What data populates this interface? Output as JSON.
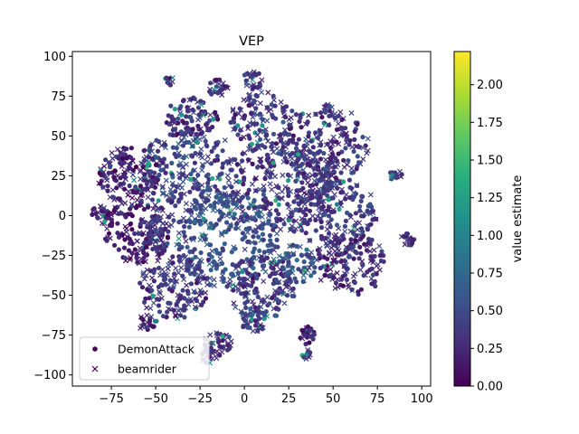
{
  "chart_data": {
    "type": "scatter",
    "title": "VEP",
    "xlabel": "",
    "ylabel": "",
    "xlim": [
      -97,
      105
    ],
    "ylim": [
      -107,
      103
    ],
    "x_ticks": [
      -75,
      -50,
      -25,
      0,
      25,
      50,
      75,
      100
    ],
    "y_ticks": [
      -100,
      -75,
      -50,
      -25,
      0,
      25,
      50,
      75,
      100
    ],
    "grid": false,
    "legend_position": "lower-left",
    "series": [
      {
        "name": "DemonAttack",
        "marker": "circle"
      },
      {
        "name": "beamrider",
        "marker": "x"
      }
    ],
    "colorbar": {
      "label": "value estimate",
      "colormap": "viridis",
      "range": [
        0.0,
        2.22
      ],
      "ticks": [
        0.0,
        0.25,
        0.5,
        0.75,
        1.0,
        1.25,
        1.5,
        1.75,
        2.0
      ],
      "tick_labels": [
        "0.00",
        "0.25",
        "0.50",
        "0.75",
        "1.00",
        "1.25",
        "1.50",
        "1.75",
        "2.00"
      ]
    },
    "clusters": [
      {
        "x": -30,
        "y": 25,
        "r": 30,
        "n": 260,
        "v": 0.45
      },
      {
        "x": 20,
        "y": 20,
        "r": 30,
        "n": 260,
        "v": 0.35
      },
      {
        "x": -10,
        "y": -15,
        "r": 30,
        "n": 260,
        "v": 0.55
      },
      {
        "x": 50,
        "y": 0,
        "r": 25,
        "n": 200,
        "v": 0.4
      },
      {
        "x": 45,
        "y": 45,
        "r": 25,
        "n": 200,
        "v": 0.35
      },
      {
        "x": -60,
        "y": -10,
        "r": 20,
        "n": 160,
        "v": 0.2
      },
      {
        "x": -65,
        "y": 25,
        "r": 18,
        "n": 140,
        "v": 0.25
      },
      {
        "x": 10,
        "y": -45,
        "r": 20,
        "n": 150,
        "v": 0.4
      },
      {
        "x": -40,
        "y": -45,
        "r": 20,
        "n": 150,
        "v": 0.35
      },
      {
        "x": 60,
        "y": -30,
        "r": 20,
        "n": 140,
        "v": 0.3
      },
      {
        "x": -30,
        "y": 60,
        "r": 15,
        "n": 90,
        "v": 0.3
      },
      {
        "x": 10,
        "y": 60,
        "r": 18,
        "n": 110,
        "v": 0.35
      },
      {
        "x": -15,
        "y": -80,
        "r": 8,
        "n": 40,
        "v": 0.3
      },
      {
        "x": 5,
        "y": -65,
        "r": 8,
        "n": 40,
        "v": 0.4
      },
      {
        "x": 35,
        "y": -75,
        "r": 6,
        "n": 25,
        "v": 0.2
      },
      {
        "x": -55,
        "y": -68,
        "r": 6,
        "n": 20,
        "v": 0.25
      },
      {
        "x": -50,
        "y": -10,
        "r": 10,
        "n": 40,
        "v": 0.35
      },
      {
        "x": -15,
        "y": 80,
        "r": 6,
        "n": 25,
        "v": 0.3
      },
      {
        "x": 5,
        "y": 85,
        "r": 6,
        "n": 25,
        "v": 0.4
      },
      {
        "x": -42,
        "y": 85,
        "r": 3,
        "n": 10,
        "v": 0.2
      },
      {
        "x": 85,
        "y": 25,
        "r": 4,
        "n": 15,
        "v": 0.3
      },
      {
        "x": 92,
        "y": -15,
        "r": 4,
        "n": 18,
        "v": 0.3
      },
      {
        "x": -82,
        "y": 0,
        "r": 6,
        "n": 25,
        "v": 0.2
      },
      {
        "x": 30,
        "y": -30,
        "r": 12,
        "n": 60,
        "v": 0.6
      },
      {
        "x": -20,
        "y": -88,
        "r": 5,
        "n": 20,
        "v": 0.25
      },
      {
        "x": 35,
        "y": -87,
        "r": 3,
        "n": 10,
        "v": 0.3
      }
    ]
  }
}
